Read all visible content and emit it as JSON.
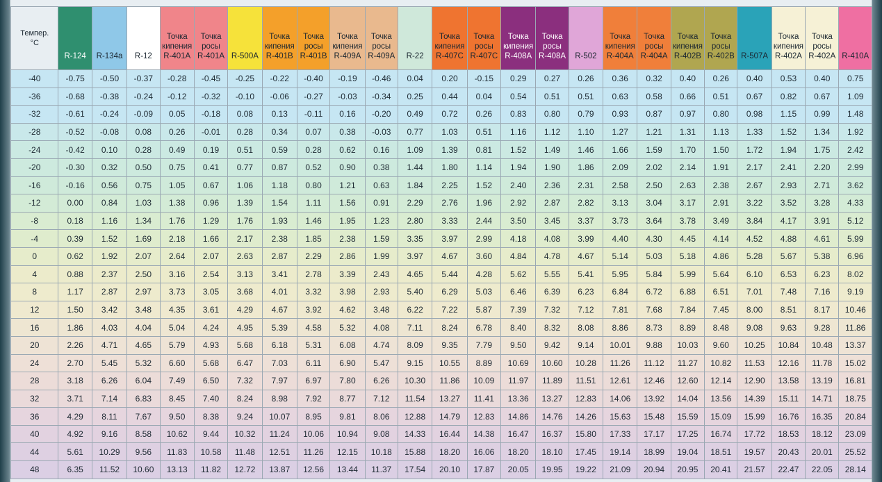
{
  "header": {
    "temp_label": "Темпер.\n°C",
    "columns": [
      {
        "label": "R-124",
        "color": "#2f8f6f",
        "text": "#ffffff"
      },
      {
        "label": "R-134a",
        "color": "#8fc8e8",
        "text": "#1a2630"
      },
      {
        "label": "R-12",
        "color": "#ffffff",
        "text": "#1a2630"
      },
      {
        "label": "Точка\nкипения\nR-401A",
        "color": "#f0858a",
        "text": "#1a2630"
      },
      {
        "label": "Точка\nросы\nR-401A",
        "color": "#f0858a",
        "text": "#1a2630"
      },
      {
        "label": "R-500A",
        "color": "#f6e23a",
        "text": "#1a2630"
      },
      {
        "label": "Точка\nкипения\nR-401B",
        "color": "#f4a02a",
        "text": "#1a2630"
      },
      {
        "label": "Точка\nросы\nR-401B",
        "color": "#f4a02a",
        "text": "#1a2630"
      },
      {
        "label": "Точка\nкипения\nR-409A",
        "color": "#e9b98e",
        "text": "#1a2630"
      },
      {
        "label": "Точка\nросы\nR-409A",
        "color": "#e9b98e",
        "text": "#1a2630"
      },
      {
        "label": "R-22",
        "color": "#cfe8da",
        "text": "#1a2630"
      },
      {
        "label": "Точка\nкипения\nR-407C",
        "color": "#ef7430",
        "text": "#1a2630"
      },
      {
        "label": "Точка\nросы\nR-407C",
        "color": "#ef7430",
        "text": "#1a2630"
      },
      {
        "label": "Точка\nкипения\nR-408A",
        "color": "#8b2f7e",
        "text": "#ffffff"
      },
      {
        "label": "Точка\nросы\nR-408A",
        "color": "#8b2f7e",
        "text": "#ffffff"
      },
      {
        "label": "R-502",
        "color": "#e0a6d8",
        "text": "#1a2630"
      },
      {
        "label": "Точка\nкипения\nR-404A",
        "color": "#f07f3a",
        "text": "#1a2630"
      },
      {
        "label": "Точка\nросы\nR-404A",
        "color": "#f07f3a",
        "text": "#1a2630"
      },
      {
        "label": "Точка\nкипения\nR-402B",
        "color": "#b0a650",
        "text": "#1a2630"
      },
      {
        "label": "Точка\nросы\nR-402B",
        "color": "#b0a650",
        "text": "#1a2630"
      },
      {
        "label": "R-507A",
        "color": "#2aa3b8",
        "text": "#1a2630"
      },
      {
        "label": "Точка\nкипения\nR-402A",
        "color": "#f6f1d6",
        "text": "#1a2630"
      },
      {
        "label": "Точка\nросы\nR-402A",
        "color": "#f6f1d6",
        "text": "#1a2630"
      },
      {
        "label": "R-410A",
        "color": "#ef6fa2",
        "text": "#1a2630"
      }
    ]
  },
  "row_colors": [
    "#c6e6f3",
    "#c6e6f3",
    "#c6e6f3",
    "#c9e8ea",
    "#cbe9e2",
    "#cdeade",
    "#cfeada",
    "#d3ebd6",
    "#d9ecd1",
    "#dfeccd",
    "#e6eccb",
    "#ecebcb",
    "#eeebcd",
    "#efe9cf",
    "#eee6d2",
    "#eee3d5",
    "#eee0d7",
    "#ecdcd8",
    "#eadada",
    "#e6d5de",
    "#e2d2e0",
    "#ded0e2",
    "#dbcfe4",
    "#d9cfe4"
  ],
  "rows": [
    {
      "t": "-40",
      "v": [
        "-0.75",
        "-0.50",
        "-0.37",
        "-0.28",
        "-0.45",
        "-0.25",
        "-0.22",
        "-0.40",
        "-0.19",
        "-0.46",
        "0.04",
        "0.20",
        "-0.15",
        "0.29",
        "0.27",
        "0.26",
        "0.36",
        "0.32",
        "0.40",
        "0.26",
        "0.40",
        "0.53",
        "0.40",
        "0.75"
      ]
    },
    {
      "t": "-36",
      "v": [
        "-0.68",
        "-0.38",
        "-0.24",
        "-0.12",
        "-0.32",
        "-0.10",
        "-0.06",
        "-0.27",
        "-0.03",
        "-0.34",
        "0.25",
        "0.44",
        "0.04",
        "0.54",
        "0.51",
        "0.51",
        "0.63",
        "0.58",
        "0.66",
        "0.51",
        "0.67",
        "0.82",
        "0.67",
        "1.09"
      ]
    },
    {
      "t": "-32",
      "v": [
        "-0.61",
        "-0.24",
        "-0.09",
        "0.05",
        "-0.18",
        "0.08",
        "0.13",
        "-0.11",
        "0.16",
        "-0.20",
        "0.49",
        "0.72",
        "0.26",
        "0.83",
        "0.80",
        "0.79",
        "0.93",
        "0.87",
        "0.97",
        "0.80",
        "0.98",
        "1.15",
        "0.99",
        "1.48"
      ]
    },
    {
      "t": "-28",
      "v": [
        "-0.52",
        "-0.08",
        "0.08",
        "0.26",
        "-0.01",
        "0.28",
        "0.34",
        "0.07",
        "0.38",
        "-0.03",
        "0.77",
        "1.03",
        "0.51",
        "1.16",
        "1.12",
        "1.10",
        "1.27",
        "1.21",
        "1.31",
        "1.13",
        "1.33",
        "1.52",
        "1.34",
        "1.92"
      ]
    },
    {
      "t": "-24",
      "v": [
        "-0.42",
        "0.10",
        "0.28",
        "0.49",
        "0.19",
        "0.51",
        "0.59",
        "0.28",
        "0.62",
        "0.16",
        "1.09",
        "1.39",
        "0.81",
        "1.52",
        "1.49",
        "1.46",
        "1.66",
        "1.59",
        "1.70",
        "1.50",
        "1.72",
        "1.94",
        "1.75",
        "2.42"
      ]
    },
    {
      "t": "-20",
      "v": [
        "-0.30",
        "0.32",
        "0.50",
        "0.75",
        "0.41",
        "0.77",
        "0.87",
        "0.52",
        "0.90",
        "0.38",
        "1.44",
        "1.80",
        "1.14",
        "1.94",
        "1.90",
        "1.86",
        "2.09",
        "2.02",
        "2.14",
        "1.91",
        "2.17",
        "2.41",
        "2.20",
        "2.99"
      ]
    },
    {
      "t": "-16",
      "v": [
        "-0.16",
        "0.56",
        "0.75",
        "1.05",
        "0.67",
        "1.06",
        "1.18",
        "0.80",
        "1.21",
        "0.63",
        "1.84",
        "2.25",
        "1.52",
        "2.40",
        "2.36",
        "2.31",
        "2.58",
        "2.50",
        "2.63",
        "2.38",
        "2.67",
        "2.93",
        "2.71",
        "3.62"
      ]
    },
    {
      "t": "-12",
      "v": [
        "0.00",
        "0.84",
        "1.03",
        "1.38",
        "0.96",
        "1.39",
        "1.54",
        "1.11",
        "1.56",
        "0.91",
        "2.29",
        "2.76",
        "1.96",
        "2.92",
        "2.87",
        "2.82",
        "3.13",
        "3.04",
        "3.17",
        "2.91",
        "3.22",
        "3.52",
        "3.28",
        "4.33"
      ]
    },
    {
      "t": "-8",
      "v": [
        "0.18",
        "1.16",
        "1.34",
        "1.76",
        "1.29",
        "1.76",
        "1.93",
        "1.46",
        "1.95",
        "1.23",
        "2.80",
        "3.33",
        "2.44",
        "3.50",
        "3.45",
        "3.37",
        "3.73",
        "3.64",
        "3.78",
        "3.49",
        "3.84",
        "4.17",
        "3.91",
        "5.12"
      ]
    },
    {
      "t": "-4",
      "v": [
        "0.39",
        "1.52",
        "1.69",
        "2.18",
        "1.66",
        "2.17",
        "2.38",
        "1.85",
        "2.38",
        "1.59",
        "3.35",
        "3.97",
        "2.99",
        "4.18",
        "4.08",
        "3.99",
        "4.40",
        "4.30",
        "4.45",
        "4.14",
        "4.52",
        "4.88",
        "4.61",
        "5.99"
      ]
    },
    {
      "t": "0",
      "v": [
        "0.62",
        "1.92",
        "2.07",
        "2.64",
        "2.07",
        "2.63",
        "2.87",
        "2.29",
        "2.86",
        "1.99",
        "3.97",
        "4.67",
        "3.60",
        "4.84",
        "4.78",
        "4.67",
        "5.14",
        "5.03",
        "5.18",
        "4.86",
        "5.28",
        "5.67",
        "5.38",
        "6.96"
      ]
    },
    {
      "t": "4",
      "v": [
        "0.88",
        "2.37",
        "2.50",
        "3.16",
        "2.54",
        "3.13",
        "3.41",
        "2.78",
        "3.39",
        "2.43",
        "4.65",
        "5.44",
        "4.28",
        "5.62",
        "5.55",
        "5.41",
        "5.95",
        "5.84",
        "5.99",
        "5.64",
        "6.10",
        "6.53",
        "6.23",
        "8.02"
      ]
    },
    {
      "t": "8",
      "v": [
        "1.17",
        "2.87",
        "2.97",
        "3.73",
        "3.05",
        "3.68",
        "4.01",
        "3.32",
        "3.98",
        "2.93",
        "5.40",
        "6.29",
        "5.03",
        "6.46",
        "6.39",
        "6.23",
        "6.84",
        "6.72",
        "6.88",
        "6.51",
        "7.01",
        "7.48",
        "7.16",
        "9.19"
      ]
    },
    {
      "t": "12",
      "v": [
        "1.50",
        "3.42",
        "3.48",
        "4.35",
        "3.61",
        "4.29",
        "4.67",
        "3.92",
        "4.62",
        "3.48",
        "6.22",
        "7.22",
        "5.87",
        "7.39",
        "7.32",
        "7.12",
        "7.81",
        "7.68",
        "7.84",
        "7.45",
        "8.00",
        "8.51",
        "8.17",
        "10.46"
      ]
    },
    {
      "t": "16",
      "v": [
        "1.86",
        "4.03",
        "4.04",
        "5.04",
        "4.24",
        "4.95",
        "5.39",
        "4.58",
        "5.32",
        "4.08",
        "7.11",
        "8.24",
        "6.78",
        "8.40",
        "8.32",
        "8.08",
        "8.86",
        "8.73",
        "8.89",
        "8.48",
        "9.08",
        "9.63",
        "9.28",
        "11.86"
      ]
    },
    {
      "t": "20",
      "v": [
        "2.26",
        "4.71",
        "4.65",
        "5.79",
        "4.93",
        "5.68",
        "6.18",
        "5.31",
        "6.08",
        "4.74",
        "8.09",
        "9.35",
        "7.79",
        "9.50",
        "9.42",
        "9.14",
        "10.01",
        "9.88",
        "10.03",
        "9.60",
        "10.25",
        "10.84",
        "10.48",
        "13.37"
      ]
    },
    {
      "t": "24",
      "v": [
        "2.70",
        "5.45",
        "5.32",
        "6.60",
        "5.68",
        "6.47",
        "7.03",
        "6.11",
        "6.90",
        "5.47",
        "9.15",
        "10.55",
        "8.89",
        "10.69",
        "10.60",
        "10.28",
        "11.26",
        "11.12",
        "11.27",
        "10.82",
        "11.53",
        "12.16",
        "11.78",
        "15.02"
      ]
    },
    {
      "t": "28",
      "v": [
        "3.18",
        "6.26",
        "6.04",
        "7.49",
        "6.50",
        "7.32",
        "7.97",
        "6.97",
        "7.80",
        "6.26",
        "10.30",
        "11.86",
        "10.09",
        "11.97",
        "11.89",
        "11.51",
        "12.61",
        "12.46",
        "12.60",
        "12.14",
        "12.90",
        "13.58",
        "13.19",
        "16.81"
      ]
    },
    {
      "t": "32",
      "v": [
        "3.71",
        "7.14",
        "6.83",
        "8.45",
        "7.40",
        "8.24",
        "8.98",
        "7.92",
        "8.77",
        "7.12",
        "11.54",
        "13.27",
        "11.41",
        "13.36",
        "13.27",
        "12.83",
        "14.06",
        "13.92",
        "14.04",
        "13.56",
        "14.39",
        "15.11",
        "14.71",
        "18.75"
      ]
    },
    {
      "t": "36",
      "v": [
        "4.29",
        "8.11",
        "7.67",
        "9.50",
        "8.38",
        "9.24",
        "10.07",
        "8.95",
        "9.81",
        "8.06",
        "12.88",
        "14.79",
        "12.83",
        "14.86",
        "14.76",
        "14.26",
        "15.63",
        "15.48",
        "15.59",
        "15.09",
        "15.99",
        "16.76",
        "16.35",
        "20.84"
      ]
    },
    {
      "t": "40",
      "v": [
        "4.92",
        "9.16",
        "8.58",
        "10.62",
        "9.44",
        "10.32",
        "11.24",
        "10.06",
        "10.94",
        "9.08",
        "14.33",
        "16.44",
        "14.38",
        "16.47",
        "16.37",
        "15.80",
        "17.33",
        "17.17",
        "17.25",
        "16.74",
        "17.72",
        "18.53",
        "18.12",
        "23.09"
      ]
    },
    {
      "t": "44",
      "v": [
        "5.61",
        "10.29",
        "9.56",
        "11.83",
        "10.58",
        "11.48",
        "12.51",
        "11.26",
        "12.15",
        "10.18",
        "15.88",
        "18.20",
        "16.06",
        "18.20",
        "18.10",
        "17.45",
        "19.14",
        "18.99",
        "19.04",
        "18.51",
        "19.57",
        "20.43",
        "20.01",
        "25.52"
      ]
    },
    {
      "t": "48",
      "v": [
        "6.35",
        "11.52",
        "10.60",
        "13.13",
        "11.82",
        "12.72",
        "13.87",
        "12.56",
        "13.44",
        "11.37",
        "17.54",
        "20.10",
        "17.87",
        "20.05",
        "19.95",
        "19.22",
        "21.09",
        "20.94",
        "20.95",
        "20.41",
        "21.57",
        "22.47",
        "22.05",
        "28.14"
      ]
    }
  ]
}
